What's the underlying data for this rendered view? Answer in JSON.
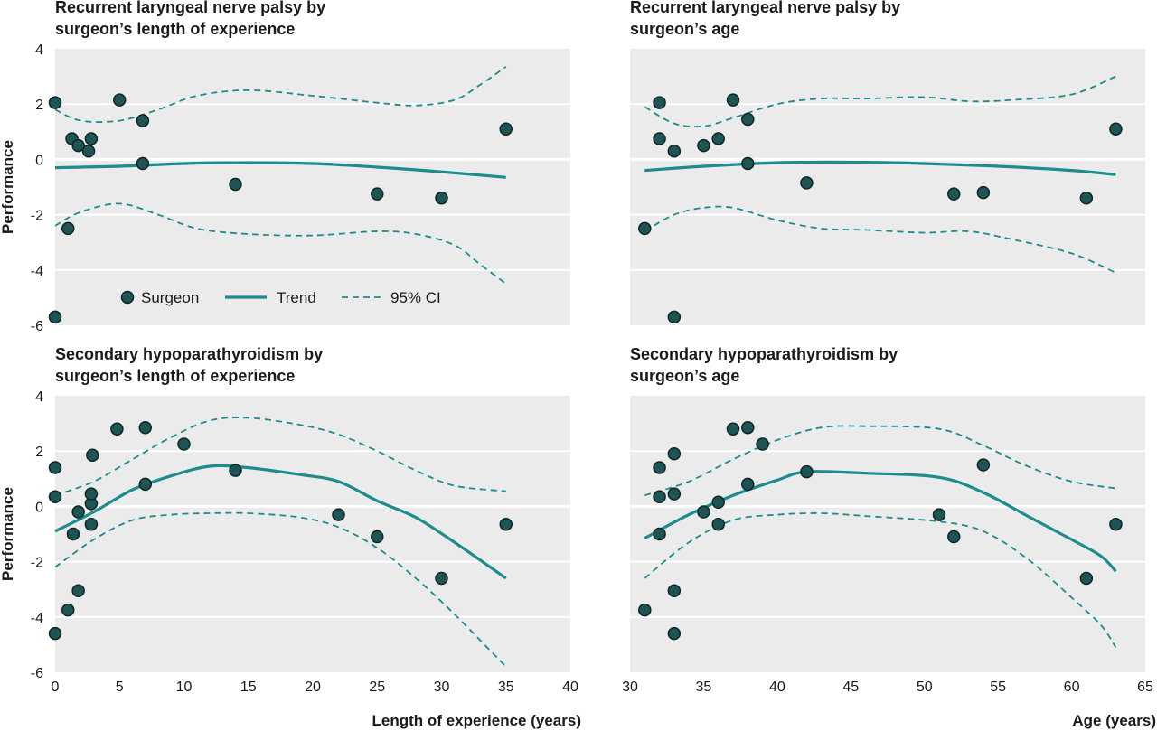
{
  "colors": {
    "panel_bg": "#ebebeb",
    "gridline": "#ffffff",
    "trend": "#1c8c8c",
    "ci": "#1c8c8c",
    "point_fill": "#1f5454",
    "point_stroke": "#0d2626"
  },
  "legend": {
    "surgeon": "Surgeon",
    "trend": "Trend",
    "ci": "95% CI"
  },
  "chart_data": [
    {
      "type": "scatter",
      "title_lines": [
        "Recurrent laryngeal nerve palsy by",
        "surgeon’s length of experience"
      ],
      "ylabel": "Performance",
      "xlabel": "",
      "xlim": [
        0,
        40
      ],
      "ylim": [
        -6,
        4
      ],
      "xticks": [
        0,
        5,
        10,
        15,
        20,
        25,
        30,
        35,
        40
      ],
      "yticks": [
        -6,
        -4,
        -2,
        0,
        2,
        4
      ],
      "show_x_ticks": false,
      "show_y_ticks": true,
      "legend": "bottom-left",
      "points": [
        [
          0,
          2.05
        ],
        [
          0,
          -5.7
        ],
        [
          1,
          -2.5
        ],
        [
          1.3,
          0.75
        ],
        [
          1.8,
          0.5
        ],
        [
          2.6,
          0.3
        ],
        [
          2.8,
          0.75
        ],
        [
          5,
          2.15
        ],
        [
          6.8,
          1.4
        ],
        [
          6.8,
          -0.15
        ],
        [
          14,
          -0.9
        ],
        [
          25,
          -1.25
        ],
        [
          30,
          -1.4
        ],
        [
          35,
          1.1
        ]
      ],
      "trend": [
        [
          0,
          -0.3
        ],
        [
          5,
          -0.25
        ],
        [
          10,
          -0.15
        ],
        [
          15,
          -0.12
        ],
        [
          20,
          -0.15
        ],
        [
          25,
          -0.28
        ],
        [
          30,
          -0.45
        ],
        [
          35,
          -0.65
        ]
      ],
      "ci_upper": [
        [
          0,
          1.8
        ],
        [
          2,
          1.4
        ],
        [
          5,
          1.4
        ],
        [
          8,
          1.8
        ],
        [
          11,
          2.3
        ],
        [
          15,
          2.5
        ],
        [
          20,
          2.3
        ],
        [
          25,
          2.05
        ],
        [
          28,
          1.95
        ],
        [
          31,
          2.15
        ],
        [
          33,
          2.7
        ],
        [
          35,
          3.35
        ]
      ],
      "ci_lower": [
        [
          0,
          -2.4
        ],
        [
          2,
          -1.9
        ],
        [
          5,
          -1.6
        ],
        [
          8,
          -2.0
        ],
        [
          11,
          -2.5
        ],
        [
          15,
          -2.7
        ],
        [
          20,
          -2.75
        ],
        [
          25,
          -2.6
        ],
        [
          28,
          -2.7
        ],
        [
          31,
          -3.1
        ],
        [
          33,
          -3.8
        ],
        [
          35,
          -4.5
        ]
      ]
    },
    {
      "type": "scatter",
      "title_lines": [
        "Recurrent laryngeal nerve palsy by",
        "surgeon’s age"
      ],
      "ylabel": "",
      "xlabel": "",
      "xlim": [
        30,
        65
      ],
      "ylim": [
        -6,
        4
      ],
      "xticks": [
        30,
        35,
        40,
        45,
        50,
        55,
        60,
        65
      ],
      "yticks": [
        -6,
        -4,
        -2,
        0,
        2,
        4
      ],
      "show_x_ticks": false,
      "show_y_ticks": false,
      "legend": "none",
      "points": [
        [
          31,
          -2.5
        ],
        [
          32,
          2.05
        ],
        [
          32,
          0.75
        ],
        [
          33,
          0.3
        ],
        [
          33,
          -5.7
        ],
        [
          35,
          0.5
        ],
        [
          36,
          0.75
        ],
        [
          37,
          2.15
        ],
        [
          38,
          1.45
        ],
        [
          38,
          -0.15
        ],
        [
          42,
          -0.85
        ],
        [
          52,
          -1.25
        ],
        [
          54,
          -1.2
        ],
        [
          61,
          -1.4
        ],
        [
          63,
          1.1
        ]
      ],
      "trend": [
        [
          31,
          -0.4
        ],
        [
          35,
          -0.25
        ],
        [
          40,
          -0.12
        ],
        [
          45,
          -0.1
        ],
        [
          50,
          -0.15
        ],
        [
          55,
          -0.25
        ],
        [
          60,
          -0.4
        ],
        [
          63,
          -0.55
        ]
      ],
      "ci_upper": [
        [
          31,
          1.9
        ],
        [
          33,
          1.3
        ],
        [
          35,
          1.2
        ],
        [
          37,
          1.5
        ],
        [
          40,
          2.0
        ],
        [
          43,
          2.2
        ],
        [
          46,
          2.2
        ],
        [
          50,
          2.25
        ],
        [
          53,
          2.1
        ],
        [
          56,
          2.15
        ],
        [
          60,
          2.35
        ],
        [
          63,
          3.0
        ]
      ],
      "ci_lower": [
        [
          31,
          -2.6
        ],
        [
          33,
          -2.0
        ],
        [
          35,
          -1.75
        ],
        [
          37,
          -1.75
        ],
        [
          40,
          -2.2
        ],
        [
          43,
          -2.5
        ],
        [
          46,
          -2.55
        ],
        [
          50,
          -2.65
        ],
        [
          53,
          -2.6
        ],
        [
          56,
          -2.9
        ],
        [
          60,
          -3.4
        ],
        [
          63,
          -4.1
        ]
      ]
    },
    {
      "type": "scatter",
      "title_lines": [
        "Secondary hypoparathyroidism by",
        "surgeon’s length of experience"
      ],
      "ylabel": "Performance",
      "xlabel": "Length of experience (years)",
      "xlim": [
        0,
        40
      ],
      "ylim": [
        -6,
        4
      ],
      "xticks": [
        0,
        5,
        10,
        15,
        20,
        25,
        30,
        35,
        40
      ],
      "yticks": [
        -6,
        -4,
        -2,
        0,
        2,
        4
      ],
      "show_x_ticks": true,
      "show_y_ticks": true,
      "legend": "none",
      "points": [
        [
          0,
          1.4
        ],
        [
          0,
          0.35
        ],
        [
          0,
          -4.6
        ],
        [
          1,
          -3.75
        ],
        [
          1.4,
          -1.0
        ],
        [
          1.8,
          -0.2
        ],
        [
          1.8,
          -3.05
        ],
        [
          2.8,
          0.1
        ],
        [
          2.8,
          0.45
        ],
        [
          2.8,
          -0.65
        ],
        [
          2.9,
          1.85
        ],
        [
          4.8,
          2.8
        ],
        [
          7,
          2.85
        ],
        [
          7,
          0.8
        ],
        [
          10,
          2.25
        ],
        [
          14,
          1.3
        ],
        [
          22,
          -0.3
        ],
        [
          25,
          -1.1
        ],
        [
          30,
          -2.6
        ],
        [
          35,
          -0.65
        ]
      ],
      "trend": [
        [
          0,
          -0.9
        ],
        [
          3,
          -0.2
        ],
        [
          6,
          0.6
        ],
        [
          9,
          1.1
        ],
        [
          12,
          1.45
        ],
        [
          15,
          1.4
        ],
        [
          19,
          1.15
        ],
        [
          22,
          0.9
        ],
        [
          25,
          0.2
        ],
        [
          28,
          -0.4
        ],
        [
          31,
          -1.3
        ],
        [
          35,
          -2.6
        ]
      ],
      "ci_upper": [
        [
          0,
          0.4
        ],
        [
          3,
          0.9
        ],
        [
          6,
          1.7
        ],
        [
          9,
          2.5
        ],
        [
          12,
          3.1
        ],
        [
          15,
          3.2
        ],
        [
          19,
          2.95
        ],
        [
          22,
          2.6
        ],
        [
          25,
          2.0
        ],
        [
          28,
          1.3
        ],
        [
          31,
          0.75
        ],
        [
          35,
          0.55
        ]
      ],
      "ci_lower": [
        [
          0,
          -2.2
        ],
        [
          3,
          -1.2
        ],
        [
          6,
          -0.5
        ],
        [
          9,
          -0.3
        ],
        [
          12,
          -0.25
        ],
        [
          15,
          -0.25
        ],
        [
          19,
          -0.4
        ],
        [
          22,
          -0.75
        ],
        [
          25,
          -1.5
        ],
        [
          28,
          -2.6
        ],
        [
          31,
          -3.9
        ],
        [
          35,
          -5.8
        ]
      ]
    },
    {
      "type": "scatter",
      "title_lines": [
        "Secondary hypoparathyroidism by",
        "surgeon’s age"
      ],
      "ylabel": "",
      "xlabel": "Age (years)",
      "xlim": [
        30,
        65
      ],
      "ylim": [
        -6,
        4
      ],
      "xticks": [
        30,
        35,
        40,
        45,
        50,
        55,
        60,
        65
      ],
      "yticks": [
        -6,
        -4,
        -2,
        0,
        2,
        4
      ],
      "show_x_ticks": true,
      "show_y_ticks": false,
      "legend": "none",
      "points": [
        [
          31,
          -3.75
        ],
        [
          32,
          1.4
        ],
        [
          32,
          0.35
        ],
        [
          32,
          -1.0
        ],
        [
          33,
          1.9
        ],
        [
          33,
          0.45
        ],
        [
          33,
          -3.05
        ],
        [
          33,
          -4.6
        ],
        [
          35,
          -0.2
        ],
        [
          36,
          0.15
        ],
        [
          36,
          -0.65
        ],
        [
          37,
          2.8
        ],
        [
          38,
          2.85
        ],
        [
          38,
          0.8
        ],
        [
          39,
          2.25
        ],
        [
          42,
          1.25
        ],
        [
          51,
          -0.3
        ],
        [
          52,
          -1.1
        ],
        [
          54,
          1.5
        ],
        [
          61,
          -2.6
        ],
        [
          63,
          -0.65
        ]
      ],
      "trend": [
        [
          31,
          -1.15
        ],
        [
          34,
          -0.3
        ],
        [
          37,
          0.4
        ],
        [
          40,
          0.95
        ],
        [
          42,
          1.25
        ],
        [
          46,
          1.2
        ],
        [
          51,
          1.05
        ],
        [
          54,
          0.5
        ],
        [
          57,
          -0.35
        ],
        [
          60,
          -1.2
        ],
        [
          62,
          -1.8
        ],
        [
          63,
          -2.35
        ]
      ],
      "ci_upper": [
        [
          31,
          0.4
        ],
        [
          34,
          0.9
        ],
        [
          37,
          1.7
        ],
        [
          40,
          2.4
        ],
        [
          43,
          2.85
        ],
        [
          46,
          2.9
        ],
        [
          51,
          2.8
        ],
        [
          54,
          2.2
        ],
        [
          57,
          1.45
        ],
        [
          60,
          0.9
        ],
        [
          63,
          0.65
        ]
      ],
      "ci_lower": [
        [
          31,
          -2.6
        ],
        [
          34,
          -1.3
        ],
        [
          37,
          -0.5
        ],
        [
          40,
          -0.3
        ],
        [
          43,
          -0.25
        ],
        [
          46,
          -0.35
        ],
        [
          51,
          -0.55
        ],
        [
          54,
          -0.9
        ],
        [
          57,
          -1.9
        ],
        [
          60,
          -3.3
        ],
        [
          62,
          -4.3
        ],
        [
          63,
          -5.1
        ]
      ]
    }
  ]
}
